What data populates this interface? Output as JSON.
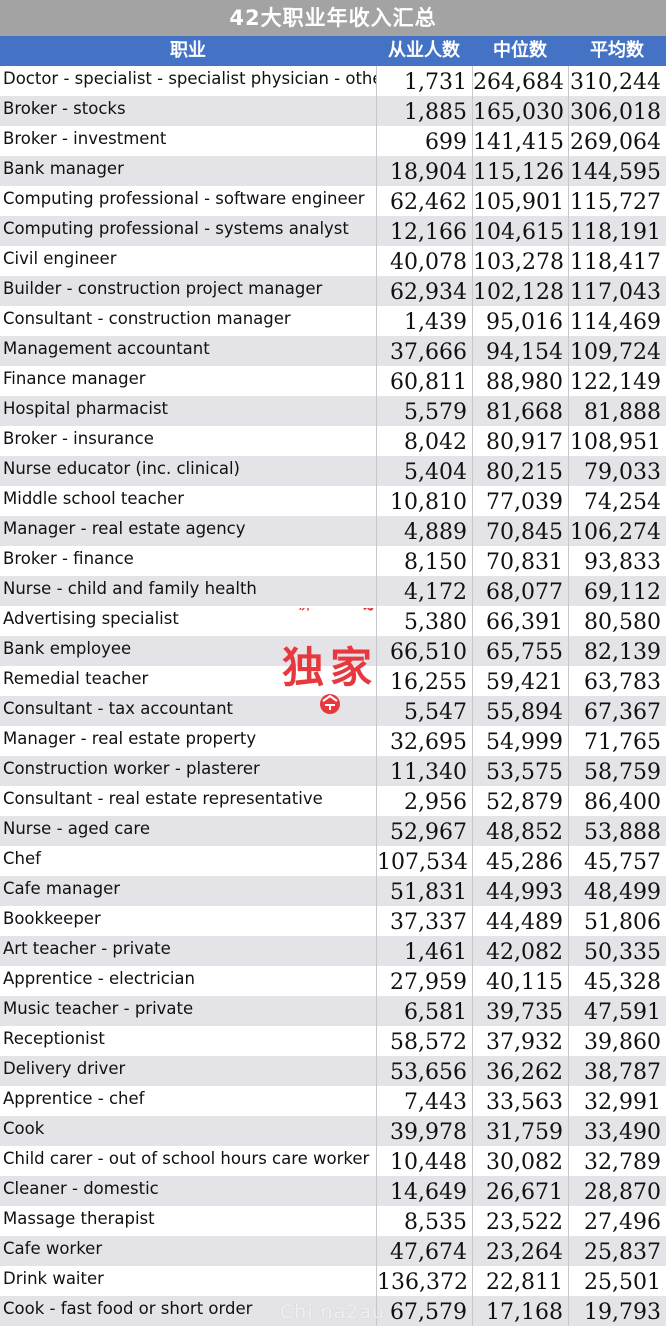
{
  "title": "42大职业年收入汇总",
  "headers": {
    "occupation": "职业",
    "employees": "从业人数",
    "median": "中位数",
    "average": "平均数"
  },
  "rows": [
    {
      "occupation": "Doctor - specialist - specialist physician - other",
      "employees": "1,731",
      "median": "264,684",
      "average": "310,244"
    },
    {
      "occupation": "Broker - stocks",
      "employees": "1,885",
      "median": "165,030",
      "average": "306,018"
    },
    {
      "occupation": "Broker - investment",
      "employees": "699",
      "median": "141,415",
      "average": "269,064"
    },
    {
      "occupation": "Bank manager",
      "employees": "18,904",
      "median": "115,126",
      "average": "144,595"
    },
    {
      "occupation": "Computing professional - software engineer",
      "employees": "62,462",
      "median": "105,901",
      "average": "115,727"
    },
    {
      "occupation": "Computing professional - systems analyst",
      "employees": "12,166",
      "median": "104,615",
      "average": "118,191"
    },
    {
      "occupation": "Civil engineer",
      "employees": "40,078",
      "median": "103,278",
      "average": "118,417"
    },
    {
      "occupation": "Builder - construction project manager",
      "employees": "62,934",
      "median": "102,128",
      "average": "117,043"
    },
    {
      "occupation": "Consultant - construction manager",
      "employees": "1,439",
      "median": "95,016",
      "average": "114,469"
    },
    {
      "occupation": "Management accountant",
      "employees": "37,666",
      "median": "94,154",
      "average": "109,724"
    },
    {
      "occupation": "Finance manager",
      "employees": "60,811",
      "median": "88,980",
      "average": "122,149"
    },
    {
      "occupation": "Hospital pharmacist",
      "employees": "5,579",
      "median": "81,668",
      "average": "81,888"
    },
    {
      "occupation": "Broker - insurance",
      "employees": "8,042",
      "median": "80,917",
      "average": "108,951"
    },
    {
      "occupation": "Nurse educator (inc. clinical)",
      "employees": "5,404",
      "median": "80,215",
      "average": "79,033"
    },
    {
      "occupation": "Middle school teacher",
      "employees": "10,810",
      "median": "77,039",
      "average": "74,254"
    },
    {
      "occupation": "Manager - real estate agency",
      "employees": "4,889",
      "median": "70,845",
      "average": "106,274"
    },
    {
      "occupation": " Broker - finance",
      "employees": "8,150",
      "median": "70,831",
      "average": "93,833"
    },
    {
      "occupation": "Nurse - child and family health",
      "employees": "4,172",
      "median": "68,077",
      "average": "69,112"
    },
    {
      "occupation": "Advertising specialist",
      "employees": "5,380",
      "median": "66,391",
      "average": "80,580"
    },
    {
      "occupation": "Bank employee",
      "employees": "66,510",
      "median": "65,755",
      "average": "82,139"
    },
    {
      "occupation": "Remedial teacher",
      "employees": "16,255",
      "median": "59,421",
      "average": "63,783"
    },
    {
      "occupation": "Consultant - tax accountant",
      "employees": "5,547",
      "median": "55,894",
      "average": "67,367"
    },
    {
      "occupation": "Manager - real estate property",
      "employees": "32,695",
      "median": "54,999",
      "average": "71,765"
    },
    {
      "occupation": "Construction worker - plasterer",
      "employees": "11,340",
      "median": "53,575",
      "average": "58,759"
    },
    {
      "occupation": "Consultant - real estate representative",
      "employees": "2,956",
      "median": "52,879",
      "average": "86,400"
    },
    {
      "occupation": "Nurse - aged care",
      "employees": "52,967",
      "median": "48,852",
      "average": "53,888"
    },
    {
      "occupation": "Chef",
      "employees": "107,534",
      "median": "45,286",
      "average": "45,757"
    },
    {
      "occupation": "Cafe manager",
      "employees": "51,831",
      "median": "44,993",
      "average": "48,499"
    },
    {
      "occupation": "Bookkeeper",
      "employees": "37,337",
      "median": "44,489",
      "average": "51,806"
    },
    {
      "occupation": "Art teacher - private",
      "employees": "1,461",
      "median": "42,082",
      "average": "50,335"
    },
    {
      "occupation": "Apprentice - electrician",
      "employees": "27,959",
      "median": "40,115",
      "average": "45,328"
    },
    {
      "occupation": "Music teacher - private",
      "employees": "6,581",
      "median": "39,735",
      "average": "47,591"
    },
    {
      "occupation": "Receptionist",
      "employees": "58,572",
      "median": "37,932",
      "average": "39,860"
    },
    {
      "occupation": "Delivery driver",
      "employees": "53,656",
      "median": "36,262",
      "average": "38,787"
    },
    {
      "occupation": "Apprentice - chef",
      "employees": "7,443",
      "median": "33,563",
      "average": "32,991"
    },
    {
      "occupation": "Cook",
      "employees": "39,978",
      "median": "31,759",
      "average": "33,490"
    },
    {
      "occupation": "Child carer - out of school hours care worker",
      "employees": "10,448",
      "median": "30,082",
      "average": "32,789"
    },
    {
      "occupation": "Cleaner - domestic",
      "employees": "14,649",
      "median": "26,671",
      "average": "28,870"
    },
    {
      "occupation": "Massage therapist",
      "employees": "8,535",
      "median": "23,522",
      "average": "27,496"
    },
    {
      "occupation": "Cafe worker",
      "employees": "47,674",
      "median": "23,264",
      "average": "25,837"
    },
    {
      "occupation": "Drink waiter",
      "employees": "136,372",
      "median": "22,811",
      "average": "25,501"
    },
    {
      "occupation": "Cook - fast food or short order",
      "employees": "67,579",
      "median": "17,168",
      "average": "19,793"
    }
  ],
  "stamp": {
    "arc_text": "今日澳洲APP",
    "main_text": "独家",
    "color": "#e8383d"
  },
  "watermark": "Chi na2au",
  "colors": {
    "title_bg": "#a3a3a3",
    "header_bg": "#4472c4",
    "alt_row_bg": "#e3e3e8"
  }
}
